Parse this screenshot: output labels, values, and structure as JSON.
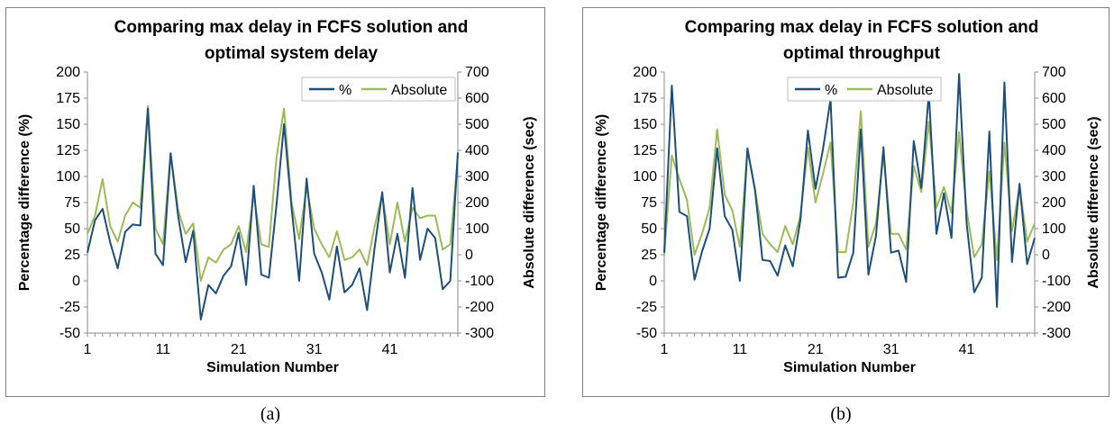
{
  "chart_data": [
    {
      "type": "line",
      "panel_caption": "(a)",
      "title_lines": [
        "Comparing max delay in FCFS solution and",
        "optimal system delay"
      ],
      "xlabel": "Simulation Number",
      "ylabel": "Percentage difference (%)",
      "y2label": "Absolute difference (sec)",
      "x_ticks": [
        1,
        11,
        21,
        31,
        41
      ],
      "ylim": [
        -50,
        200
      ],
      "y_ticks": [
        -50,
        -25,
        0,
        25,
        50,
        75,
        100,
        125,
        150,
        175,
        200
      ],
      "y2lim": [
        -300,
        700
      ],
      "y2_ticks": [
        -300,
        -200,
        -100,
        0,
        100,
        200,
        300,
        400,
        500,
        600,
        700
      ],
      "legend_position": "top-right",
      "series": [
        {
          "name": "%",
          "color": "#1f4e79",
          "axis": "left",
          "x": [
            1,
            2,
            3,
            4,
            5,
            6,
            7,
            8,
            9,
            10,
            11,
            12,
            13,
            14,
            15,
            16,
            17,
            18,
            19,
            20,
            21,
            22,
            23,
            24,
            25,
            26,
            27,
            28,
            29,
            30,
            31,
            32,
            33,
            34,
            35,
            36,
            37,
            38,
            39,
            40,
            41,
            42,
            43,
            44,
            45,
            46,
            47,
            48,
            49,
            50
          ],
          "values": [
            27,
            58,
            69,
            37,
            12,
            47,
            54,
            53,
            165,
            26,
            15,
            122,
            62,
            18,
            48,
            -37,
            -4,
            -12,
            5,
            14,
            46,
            -4,
            91,
            6,
            3,
            72,
            150,
            70,
            0,
            98,
            26,
            8,
            -18,
            33,
            -11,
            -4,
            12,
            -28,
            32,
            85,
            8,
            45,
            3,
            89,
            20,
            50,
            41,
            -8,
            0,
            123
          ]
        },
        {
          "name": "Absolute",
          "color": "#9bbb59",
          "axis": "right",
          "x": [
            1,
            2,
            3,
            4,
            5,
            6,
            7,
            8,
            9,
            10,
            11,
            12,
            13,
            14,
            15,
            16,
            17,
            18,
            19,
            20,
            21,
            22,
            23,
            24,
            25,
            26,
            27,
            28,
            29,
            30,
            31,
            32,
            33,
            34,
            35,
            36,
            37,
            38,
            39,
            40,
            41,
            42,
            43,
            44,
            45,
            46,
            47,
            48,
            49,
            50
          ],
          "values": [
            80,
            150,
            290,
            110,
            50,
            150,
            200,
            180,
            570,
            100,
            40,
            390,
            170,
            80,
            120,
            -100,
            -10,
            -30,
            20,
            40,
            110,
            10,
            230,
            40,
            30,
            370,
            560,
            200,
            60,
            260,
            100,
            40,
            -10,
            90,
            -20,
            -10,
            20,
            -40,
            110,
            230,
            40,
            200,
            50,
            180,
            140,
            150,
            150,
            20,
            40,
            380
          ]
        }
      ]
    },
    {
      "type": "line",
      "panel_caption": "(b)",
      "title_lines": [
        "Comparing max delay in FCFS solution and",
        "optimal throughput"
      ],
      "xlabel": "Simulation Number",
      "ylabel": "Percentage difference (%)",
      "y2label": "Absolute difference (sec)",
      "x_ticks": [
        1,
        11,
        21,
        31,
        41
      ],
      "ylim": [
        -50,
        200
      ],
      "y_ticks": [
        -50,
        -25,
        0,
        25,
        50,
        75,
        100,
        125,
        150,
        175,
        200
      ],
      "y2lim": [
        -300,
        700
      ],
      "y2_ticks": [
        -300,
        -200,
        -100,
        0,
        100,
        200,
        300,
        400,
        500,
        600,
        700
      ],
      "legend_position": "top-center",
      "series": [
        {
          "name": "%",
          "color": "#1f4e79",
          "axis": "left",
          "x": [
            1,
            2,
            3,
            4,
            5,
            6,
            7,
            8,
            9,
            10,
            11,
            12,
            13,
            14,
            15,
            16,
            17,
            18,
            19,
            20,
            21,
            22,
            23,
            24,
            25,
            26,
            27,
            28,
            29,
            30,
            31,
            32,
            33,
            34,
            35,
            36,
            37,
            38,
            39,
            40,
            41,
            42,
            43,
            44,
            45,
            46,
            47,
            48,
            49,
            50
          ],
          "values": [
            27,
            187,
            66,
            62,
            1,
            28,
            50,
            127,
            62,
            49,
            0,
            127,
            87,
            20,
            19,
            5,
            34,
            14,
            58,
            144,
            88,
            126,
            174,
            3,
            4,
            27,
            145,
            6,
            43,
            128,
            27,
            29,
            -1,
            134,
            89,
            180,
            45,
            84,
            41,
            198,
            55,
            -11,
            3,
            143,
            -25,
            190,
            18,
            93,
            16,
            41
          ]
        },
        {
          "name": "Absolute",
          "color": "#9bbb59",
          "axis": "right",
          "x": [
            1,
            2,
            3,
            4,
            5,
            6,
            7,
            8,
            9,
            10,
            11,
            12,
            13,
            14,
            15,
            16,
            17,
            18,
            19,
            20,
            21,
            22,
            23,
            24,
            25,
            26,
            27,
            28,
            29,
            30,
            31,
            32,
            33,
            34,
            35,
            36,
            37,
            38,
            39,
            40,
            41,
            42,
            43,
            44,
            45,
            46,
            47,
            48,
            49,
            50
          ],
          "values": [
            0,
            380,
            290,
            210,
            0,
            80,
            180,
            480,
            230,
            170,
            30,
            400,
            250,
            80,
            40,
            10,
            110,
            40,
            150,
            410,
            200,
            310,
            430,
            10,
            10,
            200,
            550,
            30,
            120,
            380,
            80,
            80,
            20,
            340,
            240,
            510,
            180,
            260,
            160,
            470,
            170,
            -10,
            40,
            320,
            -20,
            430,
            90,
            260,
            50,
            120
          ]
        }
      ]
    }
  ]
}
